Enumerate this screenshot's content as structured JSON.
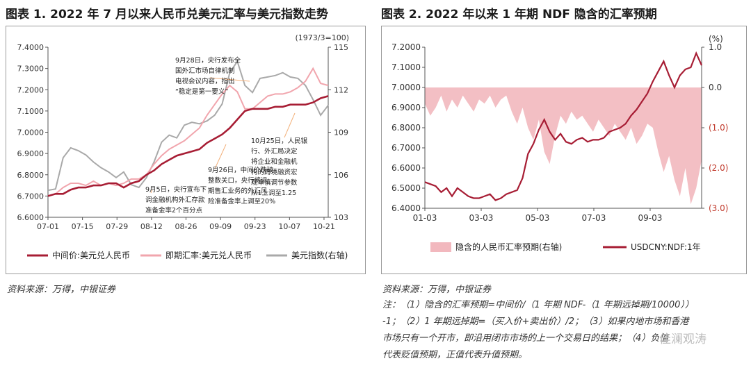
{
  "left": {
    "title": "图表 1. 2022 年 7 月以来人民币兑美元汇率与美元指数走势",
    "source": "资料来源：万得，中银证券",
    "unit_right": "(1973/3=100)",
    "annotations": [
      [
        "9月28日，央行发布全",
        "国外汇市场自律机制",
        "电视会议内容，指出",
        "“稳定是第一要义”"
      ],
      [
        "10月25日，人民银",
        "行、外汇局决定",
        "将企业和金融机",
        "构的跨境融资宏",
        "观审慎调节参数",
        "从1上调至1.25"
      ],
      [
        "9月26日，中间价跌破",
        "整数关口，央行将远",
        "期售汇业务的外汇风",
        "险准备金率上调至20%"
      ],
      [
        "9月5日，央行宣布下",
        "调金融机构外汇存款",
        "准备金率2个百分点"
      ]
    ]
  },
  "right": {
    "title": "图表 2. 2022 年以来 1 年期 NDF 隐含的汇率预期",
    "source": "资料来源：万得，中银证券",
    "unit_right": "(%)",
    "notes": [
      "注：（1）隐含的汇率预期=中间价/（1 年期 NDF-（1 年期远掉期/10000））",
      "-1；（2）1 年期远掉期=（买入价+卖出价）/2；（3）如果内地市场和香港",
      "市场只有一个开市，即沿用闭市市场的上一个交易日的结果；（4）负值",
      "代表贬值预期，正值代表升值预期。"
    ],
    "watermark": "佳澜观涛"
  },
  "chart_data": [
    {
      "type": "line",
      "title": "图表 1. 2022 年 7 月以来人民币兑美元汇率与美元指数走势",
      "x_ticks": [
        "07-01",
        "07-15",
        "07-29",
        "08-12",
        "08-26",
        "09-09",
        "09-23",
        "10-07",
        "10-21"
      ],
      "y_ticks": [
        "6.6000",
        "6.7000",
        "6.8000",
        "6.9000",
        "7.0000",
        "7.1000",
        "7.2000",
        "7.3000",
        "7.4000"
      ],
      "ylim": [
        6.6,
        7.4
      ],
      "y2_ticks": [
        "103",
        "106",
        "109",
        "112",
        "115"
      ],
      "y2lim": [
        103,
        115
      ],
      "grid": false,
      "legend": "bottom",
      "series": [
        {
          "name": "中间价:美元兑人民币",
          "axis": "left",
          "color": "#a71d34",
          "values": [
            6.7,
            6.71,
            6.71,
            6.73,
            6.74,
            6.74,
            6.75,
            6.75,
            6.76,
            6.76,
            6.74,
            6.76,
            6.77,
            6.8,
            6.82,
            6.85,
            6.87,
            6.89,
            6.9,
            6.91,
            6.92,
            6.95,
            6.97,
            6.99,
            7.02,
            7.06,
            7.1,
            7.11,
            7.11,
            7.11,
            7.12,
            7.12,
            7.13,
            7.13,
            7.13,
            7.14,
            7.16,
            7.17
          ]
        },
        {
          "name": "即期汇率:美元兑人民币",
          "axis": "left",
          "color": "#f1a5ad",
          "values": [
            6.7,
            6.71,
            6.74,
            6.76,
            6.76,
            6.75,
            6.77,
            6.75,
            6.76,
            6.75,
            6.76,
            6.78,
            6.78,
            6.8,
            6.85,
            6.89,
            6.92,
            6.94,
            6.96,
            6.99,
            7.02,
            7.08,
            7.13,
            7.18,
            7.22,
            7.19,
            7.11,
            7.11,
            7.14,
            7.17,
            7.18,
            7.18,
            7.19,
            7.21,
            7.24,
            7.3,
            7.23,
            7.22
          ]
        },
        {
          "name": "美元指数(右轴)",
          "axis": "right",
          "color": "#a9a9a9",
          "values": [
            104.9,
            105.0,
            107.2,
            107.9,
            107.7,
            107.4,
            106.9,
            106.5,
            106.2,
            105.8,
            106.2,
            105.3,
            105.1,
            105.8,
            106.9,
            108.3,
            108.8,
            108.6,
            109.5,
            109.7,
            109.6,
            109.8,
            110.2,
            111.0,
            113.2,
            114.0,
            112.3,
            111.8,
            112.8,
            112.9,
            113.0,
            113.2,
            112.9,
            112.8,
            112.3,
            111.3,
            110.2,
            110.9
          ]
        }
      ]
    },
    {
      "type": "area",
      "title": "图表 2. 2022 年以来 1 年期 NDF 隐含的汇率预期",
      "x_ticks": [
        "01-03",
        "03-03",
        "05-03",
        "07-03",
        "09-03"
      ],
      "y_ticks": [
        "6.4000",
        "6.5000",
        "6.6000",
        "6.7000",
        "6.8000",
        "6.9000",
        "7.0000",
        "7.1000",
        "7.2000"
      ],
      "ylim": [
        6.4,
        7.2
      ],
      "y2_ticks": [
        "1.0",
        "0.0",
        "(1.0)",
        "(2.0)",
        "(3.0)"
      ],
      "y2lim": [
        -3.0,
        1.0
      ],
      "grid": false,
      "legend": "bottom",
      "series": [
        {
          "name": "隐含的人民币汇率预期(右轴)",
          "axis": "right",
          "kind": "area",
          "color": "#f2b8be",
          "values": [
            -0.4,
            -0.7,
            -0.5,
            -0.2,
            -0.6,
            -0.3,
            -0.5,
            -0.2,
            -0.4,
            -0.6,
            -0.3,
            -0.4,
            -0.2,
            -0.5,
            -0.3,
            -0.2,
            -0.6,
            -0.9,
            -0.5,
            -1.0,
            -1.3,
            -0.8,
            -1.6,
            -1.9,
            -1.2,
            -0.7,
            -0.9,
            -0.6,
            -0.8,
            -0.7,
            -0.9,
            -1.1,
            -0.8,
            -1.0,
            -1.2,
            -0.9,
            -1.1,
            -1.3,
            -1.0,
            -1.4,
            -1.2,
            -0.9,
            -1.0,
            -1.6,
            -2.1,
            -1.7,
            -2.3,
            -2.7,
            -2.0,
            -2.9,
            -2.5,
            -1.8
          ]
        },
        {
          "name": "USDCNY:NDF:1年",
          "axis": "left",
          "kind": "line",
          "color": "#a71d34",
          "values": [
            6.53,
            6.52,
            6.51,
            6.48,
            6.5,
            6.46,
            6.5,
            6.48,
            6.46,
            6.45,
            6.45,
            6.46,
            6.47,
            6.44,
            6.45,
            6.47,
            6.48,
            6.49,
            6.55,
            6.67,
            6.72,
            6.79,
            6.84,
            6.78,
            6.74,
            6.77,
            6.73,
            6.72,
            6.74,
            6.75,
            6.73,
            6.74,
            6.74,
            6.75,
            6.78,
            6.79,
            6.8,
            6.82,
            6.86,
            6.89,
            6.93,
            6.97,
            7.03,
            7.08,
            7.13,
            7.06,
            7.0,
            7.06,
            7.09,
            7.1,
            7.17,
            7.11
          ]
        }
      ]
    }
  ]
}
